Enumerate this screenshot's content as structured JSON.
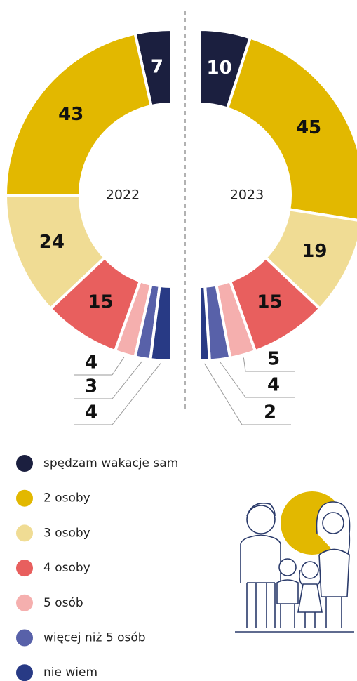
{
  "chart_data": {
    "type": "donut",
    "categories": [
      "spędzam wakacje sam",
      "2 osoby",
      "3 osoby",
      "4 osoby",
      "5 osób",
      "więcej niż 5 osób",
      "nie wiem"
    ],
    "colors": [
      "#1b1f3f",
      "#e2b800",
      "#f0dc94",
      "#e85f5e",
      "#f5afae",
      "#5861a9",
      "#283a85"
    ],
    "series": [
      {
        "name": "2022",
        "values": [
          7,
          43,
          24,
          15,
          4,
          3,
          4
        ]
      },
      {
        "name": "2023",
        "values": [
          10,
          45,
          19,
          15,
          5,
          4,
          2
        ]
      }
    ]
  }
}
